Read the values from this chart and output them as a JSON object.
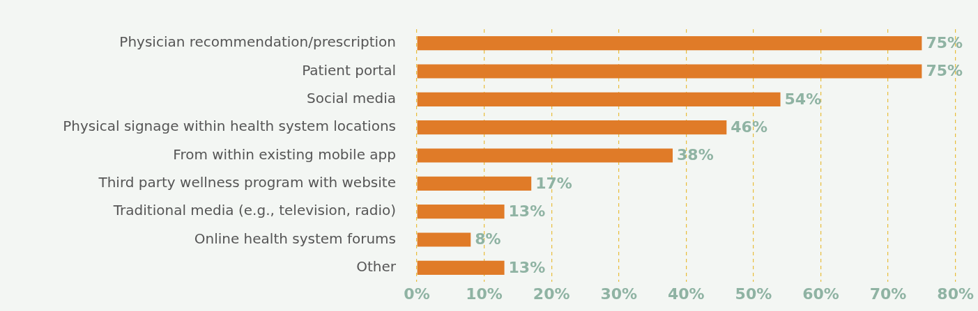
{
  "chart_data": {
    "type": "bar",
    "orientation": "horizontal",
    "categories": [
      "Physician recommendation/prescription",
      "Patient portal",
      "Social media",
      "Physical signage within health system locations",
      "From within existing mobile app",
      "Third party wellness program with website",
      "Traditional media (e.g., television, radio)",
      "Online health system forums",
      "Other"
    ],
    "values": [
      75,
      75,
      54,
      46,
      38,
      17,
      13,
      8,
      13
    ],
    "value_labels": [
      "75%",
      "75%",
      "54%",
      "46%",
      "38%",
      "17%",
      "13%",
      "8%",
      "13%"
    ],
    "color": "#e07b28",
    "xlim": [
      0,
      80
    ],
    "xticks": [
      {
        "value": 0,
        "label": "0%"
      },
      {
        "value": 10,
        "label": "10%"
      },
      {
        "value": 20,
        "label": "20%"
      },
      {
        "value": 30,
        "label": "30%"
      },
      {
        "value": 40,
        "label": "40%"
      },
      {
        "value": 50,
        "label": "50%"
      },
      {
        "value": 60,
        "label": "60%"
      },
      {
        "value": 70,
        "label": "70%"
      },
      {
        "value": 80,
        "label": "80%"
      }
    ],
    "grid": "x",
    "legend": false
  }
}
